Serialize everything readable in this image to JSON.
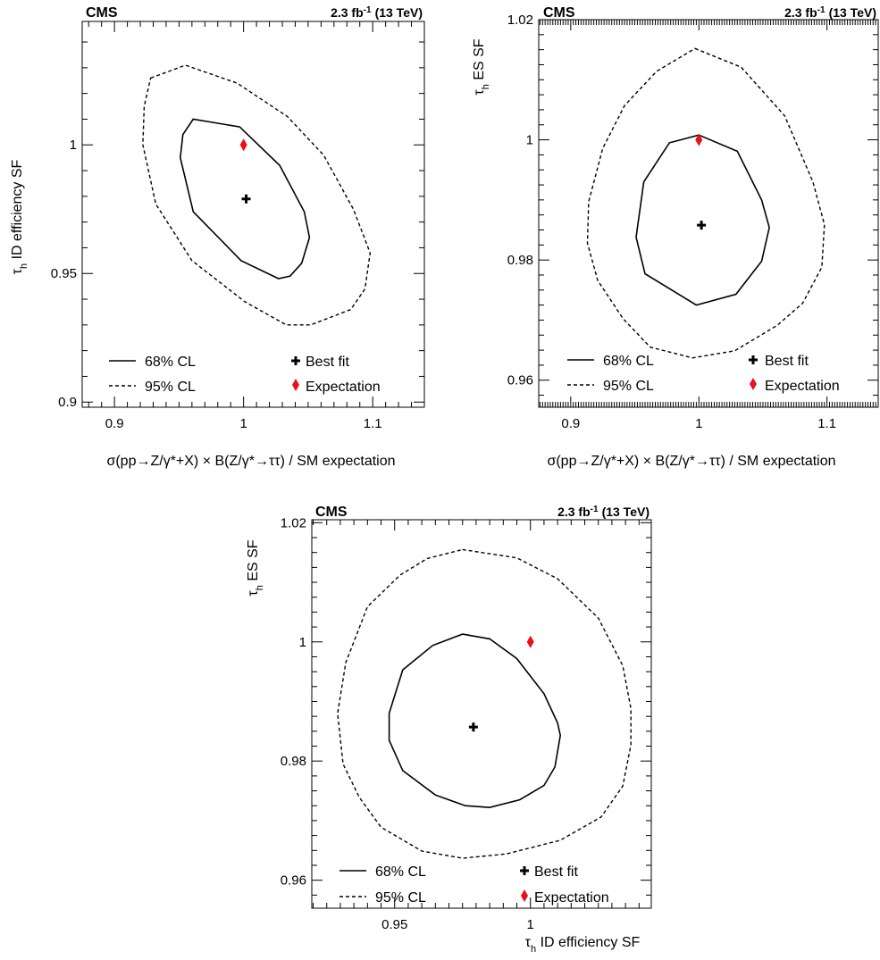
{
  "chart_data": [
    {
      "type": "scatter",
      "experiment": "CMS",
      "lumi": "2.3 fb",
      "lumi_exp": "-1",
      "energy": "(13 TeV)",
      "xlabel": "σ(pp→Z/γ*+X) × B(Z/γ*→ττ) / SM expectation",
      "ylabel_tau": "τ",
      "ylabel_sub": "h",
      "ylabel_rest": " ID efficiency SF",
      "xlim": [
        0.875,
        1.14
      ],
      "ylim": [
        0.898,
        1.048
      ],
      "xticks": [
        "0.9",
        "1",
        "1.1"
      ],
      "yticks": [
        "0.9",
        "0.95",
        "1"
      ],
      "legend": {
        "cl68": "68% CL",
        "cl95": "95% CL",
        "best": "Best fit",
        "exp": "Expectation"
      },
      "best_fit": {
        "x": 1.002,
        "y": 0.979
      },
      "expectation": {
        "x": 1.0,
        "y": 1.0
      },
      "contour_68": [
        [
          0.961,
          1.01
        ],
        [
          0.997,
          1.007
        ],
        [
          1.028,
          0.992
        ],
        [
          1.047,
          0.974
        ],
        [
          1.051,
          0.964
        ],
        [
          1.045,
          0.954
        ],
        [
          1.036,
          0.949
        ],
        [
          1.027,
          0.948
        ],
        [
          0.998,
          0.955
        ],
        [
          0.961,
          0.974
        ],
        [
          0.951,
          0.995
        ],
        [
          0.953,
          1.004
        ],
        [
          0.961,
          1.01
        ]
      ],
      "contour_95": [
        [
          0.928,
          1.026
        ],
        [
          0.955,
          1.031
        ],
        [
          0.995,
          1.024
        ],
        [
          1.034,
          1.011
        ],
        [
          1.062,
          0.996
        ],
        [
          1.085,
          0.975
        ],
        [
          1.098,
          0.958
        ],
        [
          1.094,
          0.944
        ],
        [
          1.083,
          0.936
        ],
        [
          1.052,
          0.93
        ],
        [
          1.033,
          0.93
        ],
        [
          1.001,
          0.939
        ],
        [
          0.96,
          0.955
        ],
        [
          0.932,
          0.977
        ],
        [
          0.922,
          1.0
        ],
        [
          0.923,
          1.015
        ],
        [
          0.928,
          1.026
        ]
      ]
    },
    {
      "type": "scatter",
      "experiment": "CMS",
      "lumi": "2.3 fb",
      "lumi_exp": "-1",
      "energy": "(13 TeV)",
      "xlabel": "σ(pp→Z/γ*+X) × B(Z/γ*→ττ) / SM expectation",
      "ylabel_tau": "τ",
      "ylabel_sub": "h",
      "ylabel_rest": " ES SF",
      "xlim": [
        0.875,
        1.14
      ],
      "ylim": [
        0.9555,
        1.02
      ],
      "xticks": [
        "0.9",
        "1",
        "1.1"
      ],
      "yticks": [
        "0.96",
        "0.98",
        "1",
        "1.02"
      ],
      "legend": {
        "cl68": "68% CL",
        "cl95": "95% CL",
        "best": "Best fit",
        "exp": "Expectation"
      },
      "best_fit": {
        "x": 1.002,
        "y": 0.9858
      },
      "expectation": {
        "x": 1.0,
        "y": 1.0
      },
      "contour_68": [
        [
          1.0,
          1.0008
        ],
        [
          1.03,
          0.9981
        ],
        [
          1.049,
          0.99
        ],
        [
          1.055,
          0.9854
        ],
        [
          1.049,
          0.9798
        ],
        [
          1.029,
          0.9743
        ],
        [
          0.998,
          0.9725
        ],
        [
          0.958,
          0.9777
        ],
        [
          0.951,
          0.9838
        ],
        [
          0.957,
          0.993
        ],
        [
          0.977,
          0.9995
        ],
        [
          1.0,
          1.0008
        ]
      ],
      "contour_95": [
        [
          0.997,
          1.0152
        ],
        [
          1.033,
          1.0121
        ],
        [
          1.067,
          1.004
        ],
        [
          1.089,
          0.993
        ],
        [
          1.098,
          0.9859
        ],
        [
          1.096,
          0.9788
        ],
        [
          1.081,
          0.9728
        ],
        [
          1.061,
          0.9691
        ],
        [
          1.028,
          0.9649
        ],
        [
          0.995,
          0.9637
        ],
        [
          0.962,
          0.9655
        ],
        [
          0.941,
          0.9702
        ],
        [
          0.921,
          0.9766
        ],
        [
          0.913,
          0.9828
        ],
        [
          0.914,
          0.9897
        ],
        [
          0.925,
          0.9986
        ],
        [
          0.942,
          1.0057
        ],
        [
          0.967,
          1.0114
        ],
        [
          0.997,
          1.0152
        ]
      ]
    },
    {
      "type": "scatter",
      "experiment": "CMS",
      "lumi": "2.3 fb",
      "lumi_exp": "-1",
      "energy": "(13 TeV)",
      "xlabel_tau": "τ",
      "xlabel_sub": "h",
      "xlabel_rest": " ID efficiency SF",
      "ylabel_tau": "τ",
      "ylabel_sub": "h",
      "ylabel_rest": " ES SF",
      "xlim": [
        0.9195,
        1.0445
      ],
      "ylim": [
        0.9553,
        1.0205
      ],
      "xticks": [
        "0.95",
        "1"
      ],
      "yticks": [
        "0.96",
        "0.98",
        "1",
        "1.02"
      ],
      "legend": {
        "cl68": "68% CL",
        "cl95": "95% CL",
        "best": "Best fit",
        "exp": "Expectation"
      },
      "best_fit": {
        "x": 0.979,
        "y": 0.9857
      },
      "expectation": {
        "x": 1.0,
        "y": 1.0
      },
      "contour_68": [
        [
          0.975,
          1.0013
        ],
        [
          0.985,
          1.0005
        ],
        [
          0.995,
          0.9972
        ],
        [
          1.005,
          0.9913
        ],
        [
          1.01,
          0.9864
        ],
        [
          1.011,
          0.9843
        ],
        [
          1.009,
          0.979
        ],
        [
          1.005,
          0.9759
        ],
        [
          0.996,
          0.9735
        ],
        [
          0.985,
          0.9722
        ],
        [
          0.976,
          0.9725
        ],
        [
          0.965,
          0.9743
        ],
        [
          0.953,
          0.9784
        ],
        [
          0.948,
          0.9835
        ],
        [
          0.948,
          0.988
        ],
        [
          0.953,
          0.9953
        ],
        [
          0.964,
          0.9994
        ],
        [
          0.975,
          1.0013
        ]
      ],
      "contour_95": [
        [
          0.975,
          1.0155
        ],
        [
          0.995,
          1.0141
        ],
        [
          1.01,
          1.0106
        ],
        [
          1.025,
          1.004
        ],
        [
          1.034,
          0.996
        ],
        [
          1.037,
          0.9888
        ],
        [
          1.037,
          0.9827
        ],
        [
          1.034,
          0.9758
        ],
        [
          1.026,
          0.9706
        ],
        [
          1.011,
          0.9667
        ],
        [
          0.991,
          0.9644
        ],
        [
          0.975,
          0.9637
        ],
        [
          0.96,
          0.9649
        ],
        [
          0.945,
          0.9689
        ],
        [
          0.937,
          0.9739
        ],
        [
          0.931,
          0.9795
        ],
        [
          0.929,
          0.988
        ],
        [
          0.932,
          0.9965
        ],
        [
          0.94,
          1.0059
        ],
        [
          0.952,
          1.0112
        ],
        [
          0.962,
          1.014
        ],
        [
          0.975,
          1.0155
        ]
      ]
    }
  ]
}
